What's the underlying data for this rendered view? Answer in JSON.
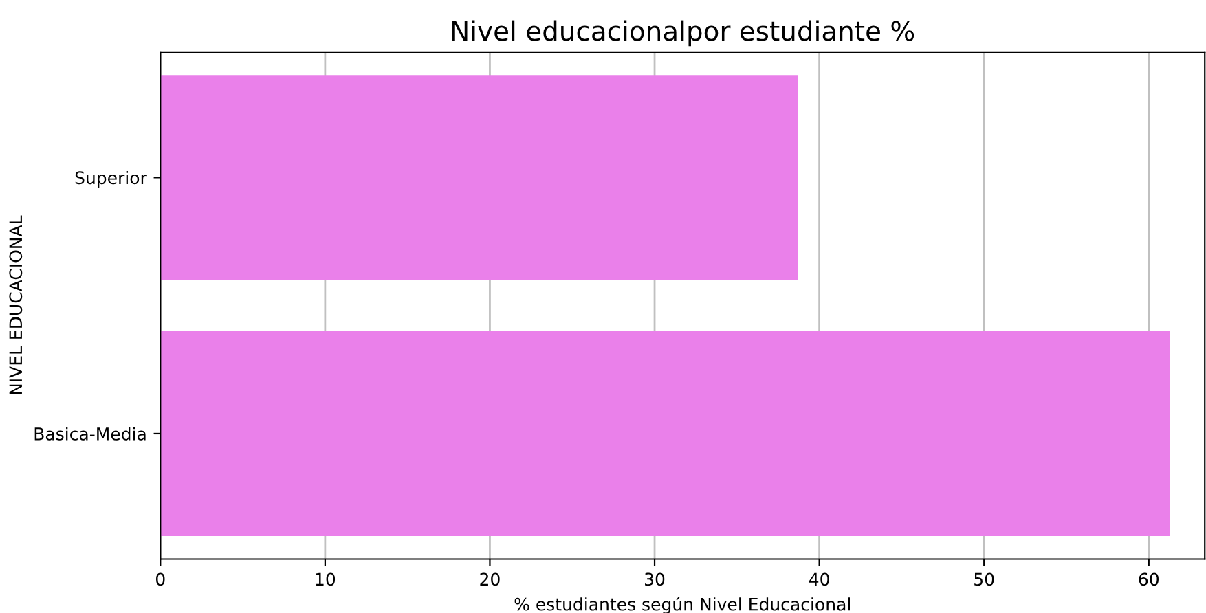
{
  "chart_data": {
    "type": "bar",
    "orientation": "horizontal",
    "title": "Nivel educacionalpor estudiante %",
    "xlabel": "% estudiantes según Nivel Educacional",
    "ylabel": "NIVEL EDUCACIONAL",
    "categories": [
      "Superior",
      "Basica-Media"
    ],
    "values": [
      38.7,
      61.3
    ],
    "color": "#ea80ea",
    "xlim": [
      0,
      63.4
    ],
    "xticks": [
      0,
      10,
      20,
      30,
      40,
      50,
      60
    ],
    "grid": "x",
    "legend": false
  }
}
